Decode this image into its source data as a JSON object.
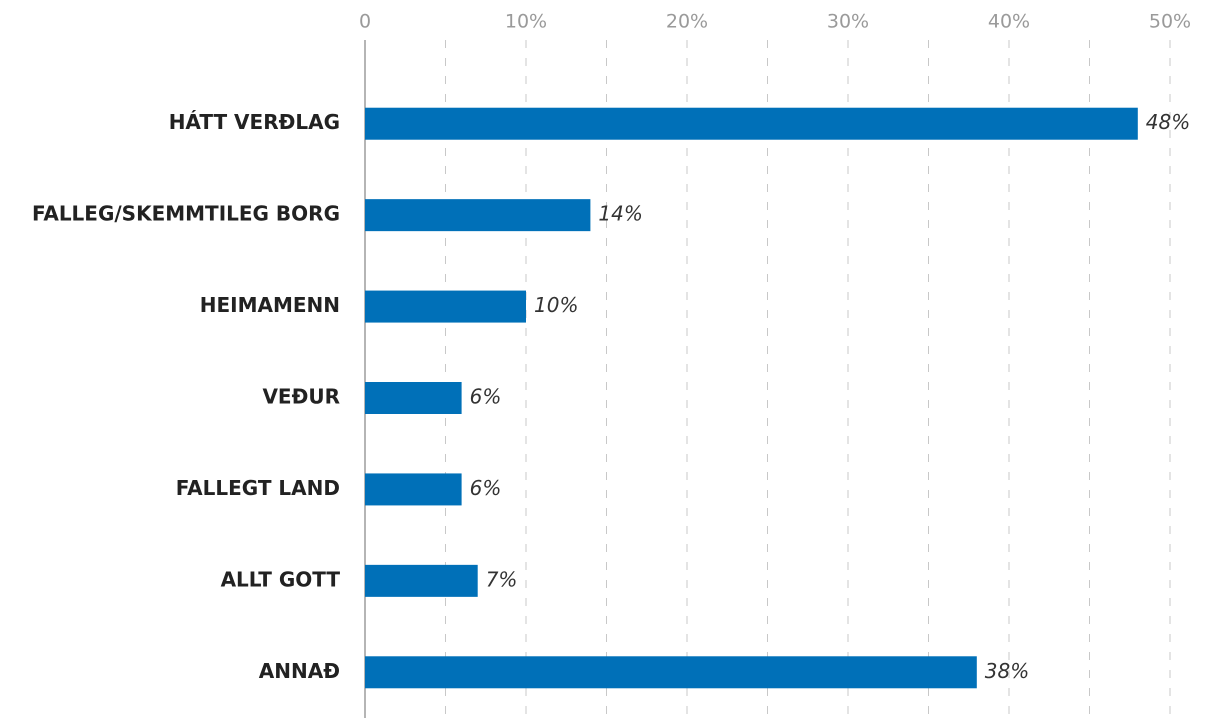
{
  "chart_data": {
    "type": "bar",
    "orientation": "horizontal",
    "categories": [
      "HÁTT VERÐLAG",
      "FALLEG/SKEMMTILEG BORG",
      "HEIMAMENN",
      "VEÐUR",
      "FALLEGT LAND",
      "ALLT GOTT",
      "ANNAÐ"
    ],
    "values": [
      48,
      14,
      10,
      6,
      6,
      7,
      38
    ],
    "value_labels": [
      "48%",
      "14%",
      "10%",
      "6%",
      "6%",
      "7%",
      "38%"
    ],
    "color": "#0070b8",
    "xlim": [
      0,
      50
    ],
    "xticks": [
      0,
      {
        "value": 10,
        "label": "10%"
      },
      {
        "value": 20,
        "label": "20%"
      },
      {
        "value": 30,
        "label": "30%"
      },
      {
        "value": 40,
        "label": "40%"
      },
      {
        "value": 50,
        "label": "50%"
      }
    ],
    "minor_xticks": [
      5,
      15,
      25,
      35,
      45
    ],
    "grid": true
  }
}
